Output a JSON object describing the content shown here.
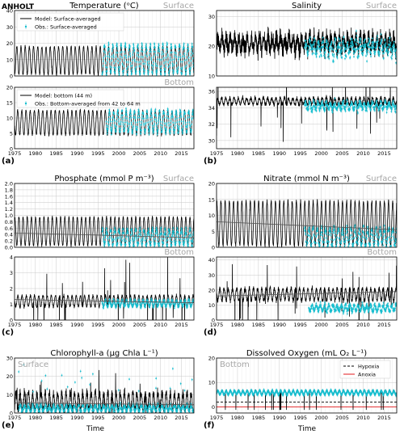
{
  "station": "ANHOLT",
  "x_label": "Time",
  "colors": {
    "model": "#000000",
    "obs": "#17becf",
    "hypoxia": "#000000",
    "anoxia": "#e31a1c",
    "grid": "#d0d0d0",
    "faint": "#a6a6a6"
  },
  "chart_data": [
    {
      "id": "temp_surface",
      "type": "line",
      "title": "Temperature (ᵒC)",
      "region": "Surface",
      "panel_letter": "",
      "ylim": [
        0,
        40
      ],
      "yticks": [
        0,
        10,
        20,
        30,
        40
      ],
      "xlim": [
        1975,
        2018
      ],
      "xticks": [
        1975,
        1980,
        1985,
        1990,
        1995,
        2000,
        2005,
        2010,
        2015
      ],
      "show_x_ticklabels": false,
      "legend": [
        "Model: Surface-averaged",
        "Obs.: Surface-averaged"
      ],
      "legend_position": "top-left",
      "series": [
        {
          "name": "Model: Surface-averaged",
          "kind": "model",
          "mean": 9.5,
          "amplitude": 8.5,
          "phase": 0.55,
          "noise": 1.2,
          "spikes": 0
        },
        {
          "name": "Obs.: Surface-averaged",
          "kind": "obs",
          "start": 1996,
          "mean": 10.2,
          "amplitude": 9,
          "phase": 0.55,
          "noise": 2
        }
      ]
    },
    {
      "id": "temp_bottom",
      "type": "line",
      "title": "",
      "region": "Bottom",
      "panel_letter": "(a)",
      "ylim": [
        0,
        20
      ],
      "yticks": [
        0,
        5,
        10,
        15,
        20
      ],
      "xlim": [
        1975,
        2018
      ],
      "xticks": [
        1975,
        1980,
        1985,
        1990,
        1995,
        2000,
        2005,
        2010,
        2015
      ],
      "show_x_ticklabels": true,
      "legend": [
        "Model: bottom (44 m)",
        "Obs.: Bottom-averaged from 42 to 64 m"
      ],
      "legend_position": "top-left",
      "series": [
        {
          "name": "Model: bottom (44 m)",
          "kind": "model",
          "mean": 8.5,
          "amplitude": 4,
          "phase": 0.75,
          "noise": 0.6,
          "spikes": 0
        },
        {
          "name": "Obs.: Bottom-averaged from 42 to 64 m",
          "kind": "obs",
          "start": 1997,
          "mean": 8.8,
          "amplitude": 3.5,
          "phase": 0.75,
          "noise": 1
        }
      ]
    },
    {
      "id": "sal_surface",
      "type": "line",
      "title": "Salinity",
      "region": "Surface",
      "panel_letter": "",
      "ylim": [
        10,
        32
      ],
      "yticks": [
        10,
        20,
        30
      ],
      "xlim": [
        1975,
        2018
      ],
      "xticks": [
        1975,
        1980,
        1985,
        1990,
        1995,
        2000,
        2005,
        2010,
        2015
      ],
      "show_x_ticklabels": false,
      "legend": [],
      "legend_position": "",
      "series": [
        {
          "name": "Model",
          "kind": "model",
          "mean": 21,
          "amplitude": 2,
          "phase": 0.3,
          "noise": 4.5,
          "spikes": 0
        },
        {
          "name": "Obs",
          "kind": "obs",
          "start": 1996,
          "mean": 19.5,
          "amplitude": 2,
          "phase": 0.3,
          "noise": 4
        }
      ]
    },
    {
      "id": "sal_bottom",
      "type": "line",
      "title": "",
      "region": "",
      "panel_letter": "(b)",
      "ylim": [
        29,
        36.5
      ],
      "yticks": [
        30,
        32,
        34,
        36
      ],
      "xlim": [
        1975,
        2018
      ],
      "xticks": [
        1975,
        1980,
        1985,
        1990,
        1995,
        2000,
        2005,
        2010,
        2015
      ],
      "show_x_ticklabels": true,
      "legend": [],
      "legend_position": "",
      "series": [
        {
          "name": "Model",
          "kind": "model",
          "mean": 34.8,
          "amplitude": 0.4,
          "phase": 0.2,
          "noise": 0.4,
          "spikes": 3.5
        },
        {
          "name": "Obs",
          "kind": "obs",
          "start": 1996,
          "mean": 34.2,
          "amplitude": 0.4,
          "phase": 0.2,
          "noise": 0.6
        }
      ]
    },
    {
      "id": "phos_surface",
      "type": "line",
      "title": "Phosphate (mmol P m⁻³)",
      "region": "Surface",
      "panel_letter": "",
      "ylim": [
        0,
        2.0
      ],
      "yticks": [
        0.0,
        0.2,
        0.4,
        0.6,
        0.8,
        1.0,
        1.2,
        1.4,
        1.6,
        1.8,
        2.0
      ],
      "xlim": [
        1975,
        2018
      ],
      "xticks": [
        1975,
        1980,
        1985,
        1990,
        1995,
        2000,
        2005,
        2010,
        2015
      ],
      "show_x_ticklabels": false,
      "legend": [],
      "legend_position": "",
      "trend": [
        [
          1975,
          0.45
        ],
        [
          2018,
          0.3
        ]
      ],
      "series": [
        {
          "name": "Model",
          "kind": "model",
          "mean": 0.5,
          "amplitude": 0.45,
          "phase": 0.05,
          "noise": 0.05,
          "spikes": 0
        },
        {
          "name": "Obs",
          "kind": "obs",
          "start": 1996,
          "mean": 0.3,
          "amplitude": 0.25,
          "phase": 0.05,
          "noise": 0.12
        }
      ]
    },
    {
      "id": "phos_bottom",
      "type": "line",
      "title": "",
      "region": "Bottom",
      "panel_letter": "(c)",
      "ylim": [
        0,
        4
      ],
      "yticks": [
        0,
        1,
        2,
        3,
        4
      ],
      "xlim": [
        1975,
        2018
      ],
      "xticks": [
        1975,
        1980,
        1985,
        1990,
        1995,
        2000,
        2005,
        2010,
        2015
      ],
      "show_x_ticklabels": true,
      "legend": [],
      "legend_position": "",
      "trend": [
        [
          1975,
          1.3
        ],
        [
          2018,
          1.1
        ]
      ],
      "series": [
        {
          "name": "Model",
          "kind": "model",
          "mean": 1.2,
          "amplitude": 0.35,
          "phase": 0.8,
          "noise": 0.15,
          "spikes": 1.8
        },
        {
          "name": "Obs",
          "kind": "obs",
          "start": 1996,
          "mean": 1.05,
          "amplitude": 0.2,
          "phase": 0.8,
          "noise": 0.15
        }
      ]
    },
    {
      "id": "nit_surface",
      "type": "line",
      "title": "Nitrate (mmol N m⁻³)",
      "region": "Surface",
      "panel_letter": "",
      "ylim": [
        0,
        20
      ],
      "yticks": [
        0,
        5,
        10,
        15,
        20
      ],
      "xlim": [
        1975,
        2018
      ],
      "xticks": [
        1975,
        1980,
        1985,
        1990,
        1995,
        2000,
        2005,
        2010,
        2015
      ],
      "show_x_ticklabels": false,
      "legend": [],
      "legend_position": "",
      "trend": [
        [
          1975,
          8
        ],
        [
          2018,
          5.5
        ]
      ],
      "series": [
        {
          "name": "Model",
          "kind": "model",
          "mean": 7.5,
          "amplitude": 7,
          "phase": 0.05,
          "noise": 0.8,
          "spikes": 0
        },
        {
          "name": "Obs",
          "kind": "obs",
          "start": 1996,
          "mean": 3,
          "amplitude": 3,
          "phase": 0.05,
          "noise": 1.5
        }
      ]
    },
    {
      "id": "nit_bottom",
      "type": "line",
      "title": "",
      "region": "Bottom",
      "panel_letter": "(d)",
      "ylim": [
        0,
        42
      ],
      "yticks": [
        0,
        10,
        20,
        30,
        40
      ],
      "xlim": [
        1975,
        2018
      ],
      "xticks": [
        1975,
        1980,
        1985,
        1990,
        1995,
        2000,
        2005,
        2010,
        2015
      ],
      "show_x_ticklabels": true,
      "legend": [],
      "legend_position": "",
      "trend": [
        [
          1975,
          16
        ],
        [
          2018,
          19
        ]
      ],
      "series": [
        {
          "name": "Model",
          "kind": "model",
          "mean": 17,
          "amplitude": 4,
          "phase": 0.8,
          "noise": 2.5,
          "spikes": 18
        },
        {
          "name": "Obs",
          "kind": "obs",
          "start": 1997,
          "mean": 8,
          "amplitude": 2,
          "phase": 0.8,
          "noise": 2.5
        }
      ]
    },
    {
      "id": "chl_surface",
      "type": "line",
      "title": "Chlorophyll-a (μg Chla L⁻¹)",
      "region": "Surface",
      "panel_letter": "(e)",
      "ylim": [
        0,
        30
      ],
      "yticks": [
        0,
        10,
        20,
        30
      ],
      "xlim": [
        1975,
        2018
      ],
      "xticks": [
        1975,
        1980,
        1985,
        1990,
        1995,
        2000,
        2005,
        2010,
        2015
      ],
      "show_x_ticklabels": true,
      "legend": [],
      "legend_position": "",
      "trend": [
        [
          1975,
          5.5
        ],
        [
          2018,
          4.5
        ]
      ],
      "series": [
        {
          "name": "Model",
          "kind": "model",
          "mean": 6,
          "amplitude": 5,
          "phase": 0.35,
          "noise": 4,
          "spikes": 8
        },
        {
          "name": "Obs",
          "kind": "obs",
          "start": 1976,
          "mean": 2.5,
          "amplitude": 1.5,
          "phase": 0.35,
          "noise": 2
        }
      ]
    },
    {
      "id": "oxy_bottom",
      "type": "line",
      "title": "Dissolved Oxygen (mL O₂ L⁻¹)",
      "region": "Bottom",
      "panel_letter": "(f)",
      "ylim": [
        -2.5,
        20
      ],
      "yticks": [
        0,
        10,
        20
      ],
      "xlim": [
        1975,
        2018
      ],
      "xticks": [
        1975,
        1980,
        1985,
        1990,
        1995,
        2000,
        2005,
        2010,
        2015
      ],
      "show_x_ticklabels": true,
      "legend": [
        "Hypoxia",
        "Anoxia"
      ],
      "legend_position": "top-right",
      "hypoxia": 2,
      "anoxia": 0,
      "series": [
        {
          "name": "Model",
          "kind": "model",
          "mean": 6,
          "amplitude": 0.8,
          "phase": 0.3,
          "noise": 0.3,
          "spikes": 0
        },
        {
          "name": "Obs",
          "kind": "obs",
          "start": 1975,
          "mean": 5.8,
          "amplitude": 0.8,
          "phase": 0.3,
          "noise": 0.6
        }
      ]
    }
  ]
}
